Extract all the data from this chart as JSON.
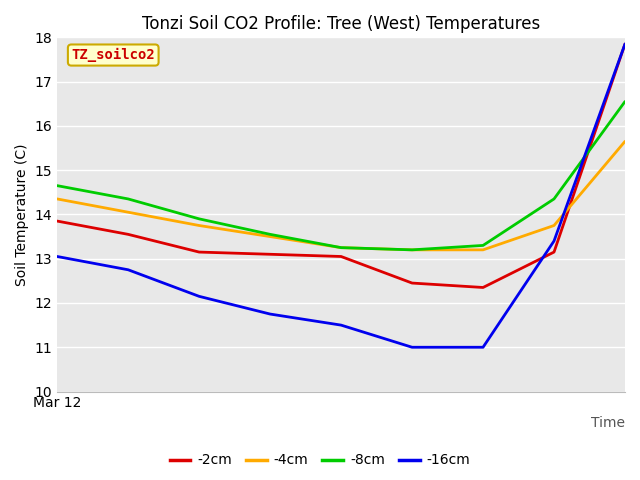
{
  "title": "Tonzi Soil CO2 Profile: Tree (West) Temperatures",
  "xlabel": "Time",
  "ylabel": "Soil Temperature (C)",
  "ylim": [
    10.0,
    18.0
  ],
  "yticks": [
    10.0,
    11.0,
    12.0,
    13.0,
    14.0,
    15.0,
    16.0,
    17.0,
    18.0
  ],
  "x_label_start": "Mar 12",
  "background_color": "#e8e8e8",
  "legend_label": "TZ_soilco2",
  "legend_box_facecolor": "#ffffcc",
  "legend_box_edgecolor": "#ccaa00",
  "series": {
    "-2cm": {
      "color": "#dd0000",
      "x": [
        0,
        1,
        2,
        3,
        4,
        5,
        6,
        7,
        8
      ],
      "y": [
        13.85,
        13.55,
        13.15,
        13.1,
        13.05,
        12.45,
        12.35,
        13.15,
        17.85
      ]
    },
    "-4cm": {
      "color": "#ffaa00",
      "x": [
        0,
        1,
        2,
        3,
        4,
        5,
        6,
        7,
        8
      ],
      "y": [
        14.35,
        14.05,
        13.75,
        13.5,
        13.25,
        13.2,
        13.2,
        13.75,
        15.65
      ]
    },
    "-8cm": {
      "color": "#00cc00",
      "x": [
        0,
        1,
        2,
        3,
        4,
        5,
        6,
        7,
        8
      ],
      "y": [
        14.65,
        14.35,
        13.9,
        13.55,
        13.25,
        13.2,
        13.3,
        14.35,
        16.55
      ]
    },
    "-16cm": {
      "color": "#0000ee",
      "x": [
        0,
        1,
        2,
        3,
        4,
        5,
        6,
        7,
        8
      ],
      "y": [
        13.05,
        12.75,
        12.15,
        11.75,
        11.5,
        11.0,
        11.0,
        13.4,
        17.85
      ]
    }
  },
  "legend_order": [
    "-2cm",
    "-4cm",
    "-8cm",
    "-16cm"
  ],
  "grid_color": "#ffffff",
  "title_fontsize": 12,
  "axis_fontsize": 10,
  "tick_fontsize": 10,
  "linewidth": 2.0
}
